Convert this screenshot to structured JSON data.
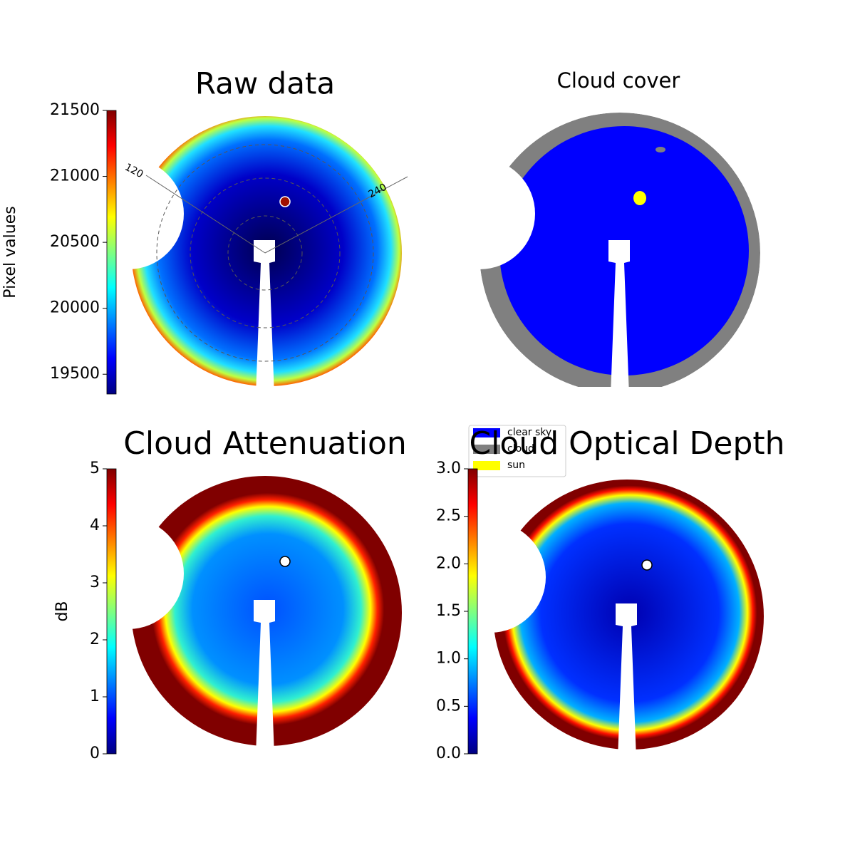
{
  "chart_data": [
    {
      "type": "heatmap",
      "title": "Raw data",
      "colorbar_label": "Pixel values",
      "colormap": "jet",
      "clim": [
        19350,
        21500
      ],
      "cticks": [
        19500,
        20000,
        20500,
        21000,
        21500
      ],
      "annotations": [
        "120",
        "240"
      ]
    },
    {
      "type": "categorical",
      "title": "Cloud cover",
      "series": [
        {
          "name": "clear sky",
          "color": "#0000ff"
        },
        {
          "name": "cloud",
          "color": "#808080"
        },
        {
          "name": "sun",
          "color": "#ffff00"
        }
      ]
    },
    {
      "type": "heatmap",
      "title": "Cloud Attenuation",
      "colorbar_label": "dB",
      "colormap": "jet",
      "clim": [
        0,
        5
      ],
      "cticks": [
        0,
        1,
        2,
        3,
        4,
        5
      ]
    },
    {
      "type": "heatmap",
      "title": "Cloud Optical Depth",
      "colormap": "jet",
      "clim": [
        0,
        3
      ],
      "cticks": [
        {
          "value": 0,
          "label": "0.0"
        },
        {
          "value": 0.5,
          "label": "0.5"
        },
        {
          "value": 1,
          "label": "1.0"
        },
        {
          "value": 1.5,
          "label": "1.5"
        },
        {
          "value": 2,
          "label": "2.0"
        },
        {
          "value": 2.5,
          "label": "2.5"
        },
        {
          "value": 3,
          "label": "3.0"
        }
      ]
    }
  ]
}
